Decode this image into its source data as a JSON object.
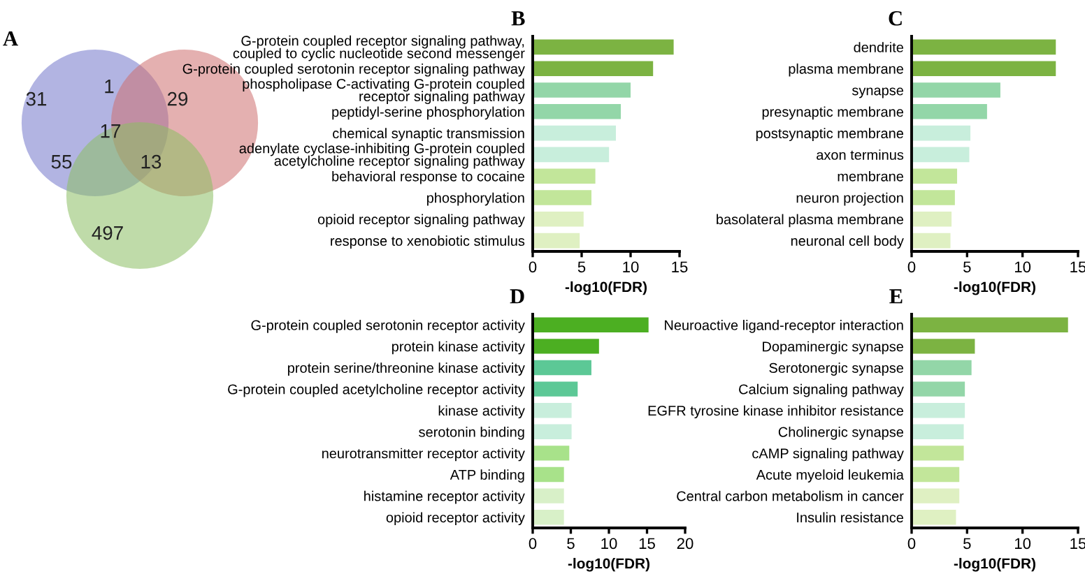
{
  "chart_data": [
    {
      "type": "other",
      "title": "A",
      "annotations": [
        "31",
        "29",
        "497",
        "1",
        "55",
        "13",
        "17"
      ]
    },
    {
      "type": "bar",
      "orientation": "horizontal",
      "title": "B",
      "xlabel": "-log10(FDR)",
      "xlim": [
        0,
        15
      ],
      "xticks": [
        0,
        5,
        10,
        15
      ],
      "categories": [
        "G-protein coupled receptor signaling pathway,\ncoupled to cyclic nucleotide second messenger",
        "G-protein coupled serotonin receptor signaling pathway",
        "phospholipase C-activating G-protein coupled\nreceptor signaling pathway",
        "peptidyl-serine phosphorylation",
        "chemical synaptic transmission",
        "adenylate cyclase-inhibiting G-protein coupled\nacetylcholine receptor signaling pathway",
        "behavioral response to cocaine",
        "phosphorylation",
        "opioid receptor signaling pathway",
        "response to xenobiotic stimulus"
      ],
      "values": [
        14.4,
        12.3,
        10.0,
        9.0,
        8.5,
        7.8,
        6.4,
        6.0,
        5.2,
        4.8
      ],
      "colors": [
        "#7cb342",
        "#7cb342",
        "#93d6a8",
        "#93d6a8",
        "#c8eedc",
        "#c8eedc",
        "#c2e69a",
        "#c2e69a",
        "#dff0c2",
        "#dff0c2"
      ]
    },
    {
      "type": "bar",
      "orientation": "horizontal",
      "title": "C",
      "xlabel": "-log10(FDR)",
      "xlim": [
        0,
        15
      ],
      "xticks": [
        0,
        5,
        10,
        15
      ],
      "categories": [
        "dendrite",
        "plasma membrane",
        "synapse",
        "presynaptic membrane",
        "postsynaptic membrane",
        "axon terminus",
        "membrane",
        "neuron projection",
        "basolateral plasma membrane",
        "neuronal cell body"
      ],
      "values": [
        13.0,
        13.0,
        8.0,
        6.8,
        5.3,
        5.2,
        4.1,
        3.9,
        3.6,
        3.5
      ],
      "colors": [
        "#7cb342",
        "#7cb342",
        "#93d6a8",
        "#93d6a8",
        "#c8eedc",
        "#c8eedc",
        "#c2e69a",
        "#c2e69a",
        "#dff0c2",
        "#dff0c2"
      ]
    },
    {
      "type": "bar",
      "orientation": "horizontal",
      "title": "D",
      "xlabel": "-log10(FDR)",
      "xlim": [
        0,
        20
      ],
      "xticks": [
        0,
        5,
        10,
        15,
        20
      ],
      "categories": [
        "G-protein coupled serotonin receptor activity",
        "protein kinase activity",
        "protein serine/threonine kinase activity",
        "G-protein coupled acetylcholine receptor activity",
        "kinase activity",
        "serotonin binding",
        "neurotransmitter receptor activity",
        "ATP binding",
        "histamine receptor activity",
        "opioid receptor activity"
      ],
      "values": [
        15.2,
        8.7,
        7.7,
        5.9,
        5.1,
        5.1,
        4.8,
        4.1,
        4.1,
        4.1
      ],
      "colors": [
        "#4caf22",
        "#4caf22",
        "#5cc896",
        "#5cc896",
        "#c8eedc",
        "#c8eedc",
        "#a8e28a",
        "#a8e28a",
        "#d8f0c8",
        "#d8f0c8"
      ]
    },
    {
      "type": "bar",
      "orientation": "horizontal",
      "title": "E",
      "xlabel": "-log10(FDR)",
      "xlim": [
        0,
        15
      ],
      "xticks": [
        0,
        5,
        10,
        15
      ],
      "categories": [
        "Neuroactive ligand-receptor interaction",
        "Dopaminergic synapse",
        "Serotonergic synapse",
        "Calcium signaling pathway",
        "EGFR tyrosine kinase inhibitor resistance",
        "Cholinergic synapse",
        "cAMP signaling pathway",
        "Acute myeloid leukemia",
        "Central carbon metabolism in cancer",
        "Insulin resistance"
      ],
      "values": [
        14.1,
        5.7,
        5.4,
        4.8,
        4.8,
        4.7,
        4.7,
        4.3,
        4.3,
        4.0
      ],
      "colors": [
        "#7cb342",
        "#7cb342",
        "#93d6a8",
        "#93d6a8",
        "#c8eedc",
        "#c8eedc",
        "#c2e69a",
        "#c2e69a",
        "#dff0c2",
        "#dff0c2"
      ]
    }
  ]
}
